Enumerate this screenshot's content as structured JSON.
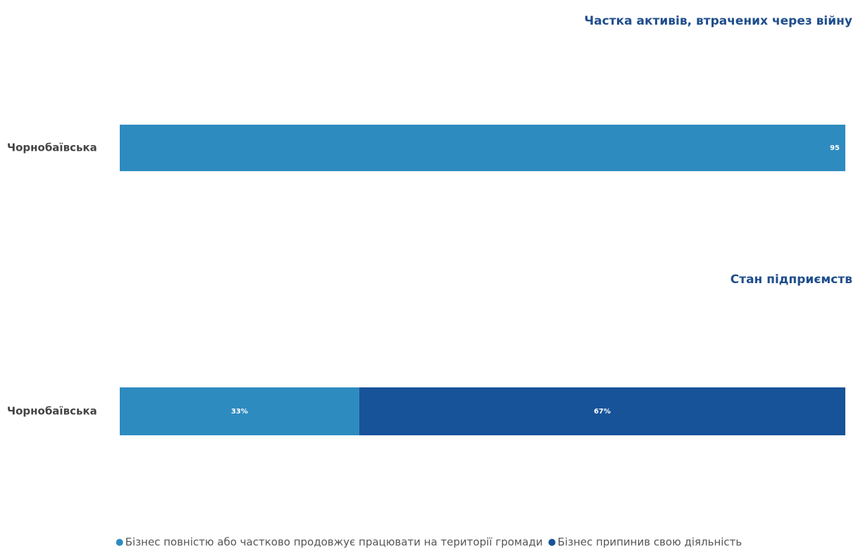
{
  "chart_data": [
    {
      "type": "bar",
      "title": "Частка активів, втрачених через війну",
      "categories": [
        "Чорнобаївська"
      ],
      "values": [
        95
      ],
      "value_labels": [
        "95"
      ],
      "color": "#2e8bc0"
    },
    {
      "type": "stacked_bar",
      "title": "Стан підприємств",
      "categories": [
        "Чорнобаївська"
      ],
      "series": [
        {
          "name": "Бізнес повністю або частково продовжує працювати на території громади",
          "color": "#2e8bc0",
          "values": [
            33
          ],
          "value_labels": [
            "33%"
          ]
        },
        {
          "name": "Бізнес припинив свою діяльність",
          "color": "#175399",
          "values": [
            67
          ],
          "value_labels": [
            "67%"
          ]
        }
      ]
    }
  ]
}
